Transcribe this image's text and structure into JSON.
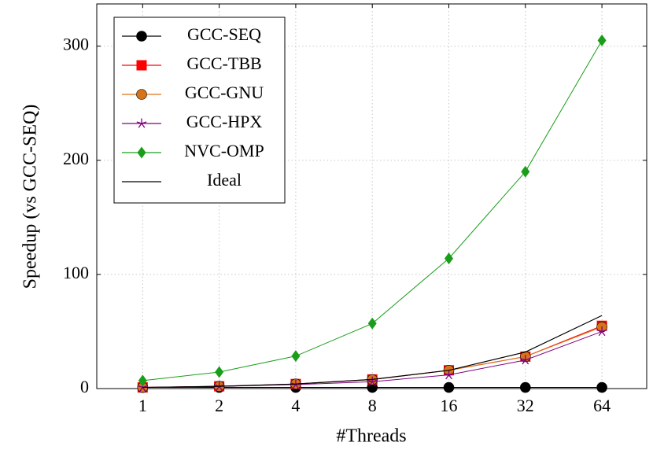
{
  "chart_data": {
    "type": "line",
    "xlabel": "#Threads",
    "ylabel": "Speedup (vs GCC-SEQ)",
    "x": [
      1,
      2,
      4,
      8,
      16,
      32,
      64
    ],
    "xscale": "log",
    "xlim": [
      0.66,
      96
    ],
    "xticks": [
      1,
      2,
      4,
      8,
      16,
      32,
      64
    ],
    "ylim": [
      0,
      337
    ],
    "yticks": [
      0,
      100,
      200,
      300
    ],
    "grid": true,
    "legend": "upper left",
    "series": [
      {
        "name": "GCC-SEQ",
        "color": "#000000",
        "marker": "circle",
        "values": [
          1,
          1,
          1,
          1,
          1,
          1,
          1
        ]
      },
      {
        "name": "GCC-TBB",
        "color": "#ff0000",
        "marker": "square",
        "values": [
          1,
          2,
          4,
          8,
          16,
          28,
          55
        ]
      },
      {
        "name": "GCC-GNU",
        "color": "#d9731a",
        "marker": "circle",
        "values": [
          1,
          2,
          4,
          7.8,
          16,
          28,
          54
        ]
      },
      {
        "name": "GCC-HPX",
        "color": "#800080",
        "marker": "star",
        "values": [
          1,
          1.9,
          3.5,
          6,
          12,
          25,
          50
        ]
      },
      {
        "name": "NVC-OMP",
        "color": "#1a9e1a",
        "marker": "diamond",
        "values": [
          7,
          14.5,
          28.5,
          57,
          114,
          190,
          305
        ]
      },
      {
        "name": "Ideal",
        "color": "#000000",
        "marker": "none",
        "values": [
          1,
          2,
          4,
          8,
          16,
          32,
          64
        ]
      }
    ]
  }
}
